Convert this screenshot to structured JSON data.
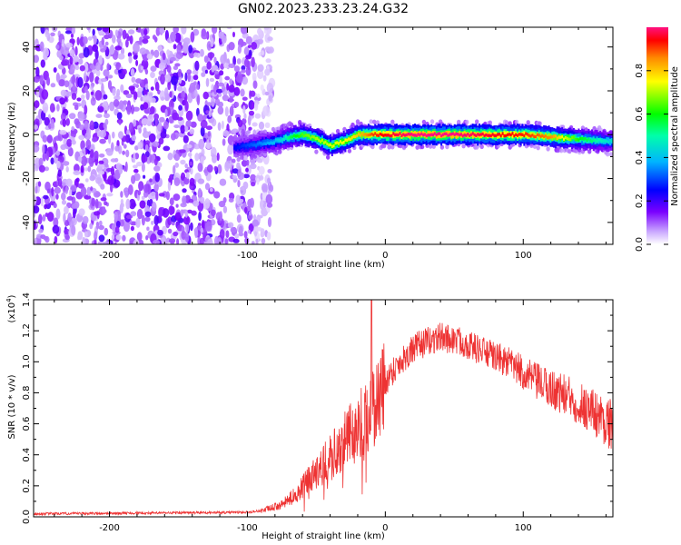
{
  "title": "GN02.2023.233.23.24.G32",
  "chart_data": [
    {
      "type": "heatmap",
      "xlabel": "Height of straight line (km)",
      "ylabel": "Frequency (Hz)",
      "xlim": [
        -255,
        165
      ],
      "ylim": [
        -50,
        49
      ],
      "xticks": [
        -200,
        -100,
        0,
        100
      ],
      "yticks": [
        -40,
        -20,
        0,
        20,
        40
      ],
      "colorbar": {
        "label": "Normalized spectral amplitude",
        "range": [
          0.0,
          1.0
        ],
        "ticks": [
          "0.0",
          "0.2",
          "0.4",
          "0.6",
          "0.8"
        ],
        "colormap": "rainbow-white"
      },
      "noise_region_x": [
        -255,
        -90
      ],
      "noise_level": 0.15,
      "ridge": [
        {
          "x": -110,
          "y": -6,
          "v": 0.25
        },
        {
          "x": -100,
          "y": -5,
          "v": 0.3
        },
        {
          "x": -90,
          "y": -4,
          "v": 0.35
        },
        {
          "x": -80,
          "y": -3,
          "v": 0.4
        },
        {
          "x": -75,
          "y": -2,
          "v": 0.45
        },
        {
          "x": -70,
          "y": -1,
          "v": 0.55
        },
        {
          "x": -60,
          "y": 0,
          "v": 0.65
        },
        {
          "x": -50,
          "y": -2,
          "v": 0.7
        },
        {
          "x": -40,
          "y": -5,
          "v": 0.72
        },
        {
          "x": -30,
          "y": -3,
          "v": 0.75
        },
        {
          "x": -20,
          "y": 0,
          "v": 0.8
        },
        {
          "x": -10,
          "y": 0,
          "v": 0.9
        },
        {
          "x": 0,
          "y": 0,
          "v": 0.95
        },
        {
          "x": 20,
          "y": 0,
          "v": 1.0
        },
        {
          "x": 50,
          "y": 0,
          "v": 1.0
        },
        {
          "x": 80,
          "y": 0,
          "v": 0.95
        },
        {
          "x": 100,
          "y": 0,
          "v": 0.92
        },
        {
          "x": 120,
          "y": -1,
          "v": 0.85
        },
        {
          "x": 140,
          "y": -2,
          "v": 0.6
        },
        {
          "x": 160,
          "y": -3,
          "v": 0.45
        }
      ]
    },
    {
      "type": "line",
      "xlabel": "Height of straight line (km)",
      "ylabel": "SNR (10 * v/v)",
      "y_multiplier": "(x10",
      "y_multiplier_exp": "4",
      "y_multiplier_close": ")",
      "xlim": [
        -255,
        165
      ],
      "ylim": [
        0,
        1.4
      ],
      "xticks": [
        -200,
        -100,
        0,
        100
      ],
      "yticks": [
        0.0,
        0.2,
        0.4,
        0.6,
        0.8,
        1.0,
        1.2,
        1.4
      ],
      "ytick_labels": [
        "0.0",
        "0.2",
        "0.4",
        "0.6",
        "0.8",
        "1.0",
        "1.2",
        "1.4"
      ],
      "color": "#ee3333",
      "envelope": [
        {
          "x": -255,
          "y": 0.02
        },
        {
          "x": -100,
          "y": 0.03
        },
        {
          "x": -90,
          "y": 0.04
        },
        {
          "x": -75,
          "y": 0.08
        },
        {
          "x": -65,
          "y": 0.15
        },
        {
          "x": -55,
          "y": 0.25
        },
        {
          "x": -45,
          "y": 0.35
        },
        {
          "x": -35,
          "y": 0.45
        },
        {
          "x": -25,
          "y": 0.55
        },
        {
          "x": -15,
          "y": 0.65
        },
        {
          "x": -5,
          "y": 0.8
        },
        {
          "x": 5,
          "y": 0.95
        },
        {
          "x": 15,
          "y": 1.05
        },
        {
          "x": 25,
          "y": 1.12
        },
        {
          "x": 40,
          "y": 1.17
        },
        {
          "x": 55,
          "y": 1.14
        },
        {
          "x": 70,
          "y": 1.08
        },
        {
          "x": 90,
          "y": 1.0
        },
        {
          "x": 110,
          "y": 0.88
        },
        {
          "x": 130,
          "y": 0.8
        },
        {
          "x": 150,
          "y": 0.7
        },
        {
          "x": 165,
          "y": 0.6
        }
      ],
      "noise_amplitude": 0.12,
      "spike": {
        "x": -10,
        "y": 1.4
      }
    }
  ]
}
